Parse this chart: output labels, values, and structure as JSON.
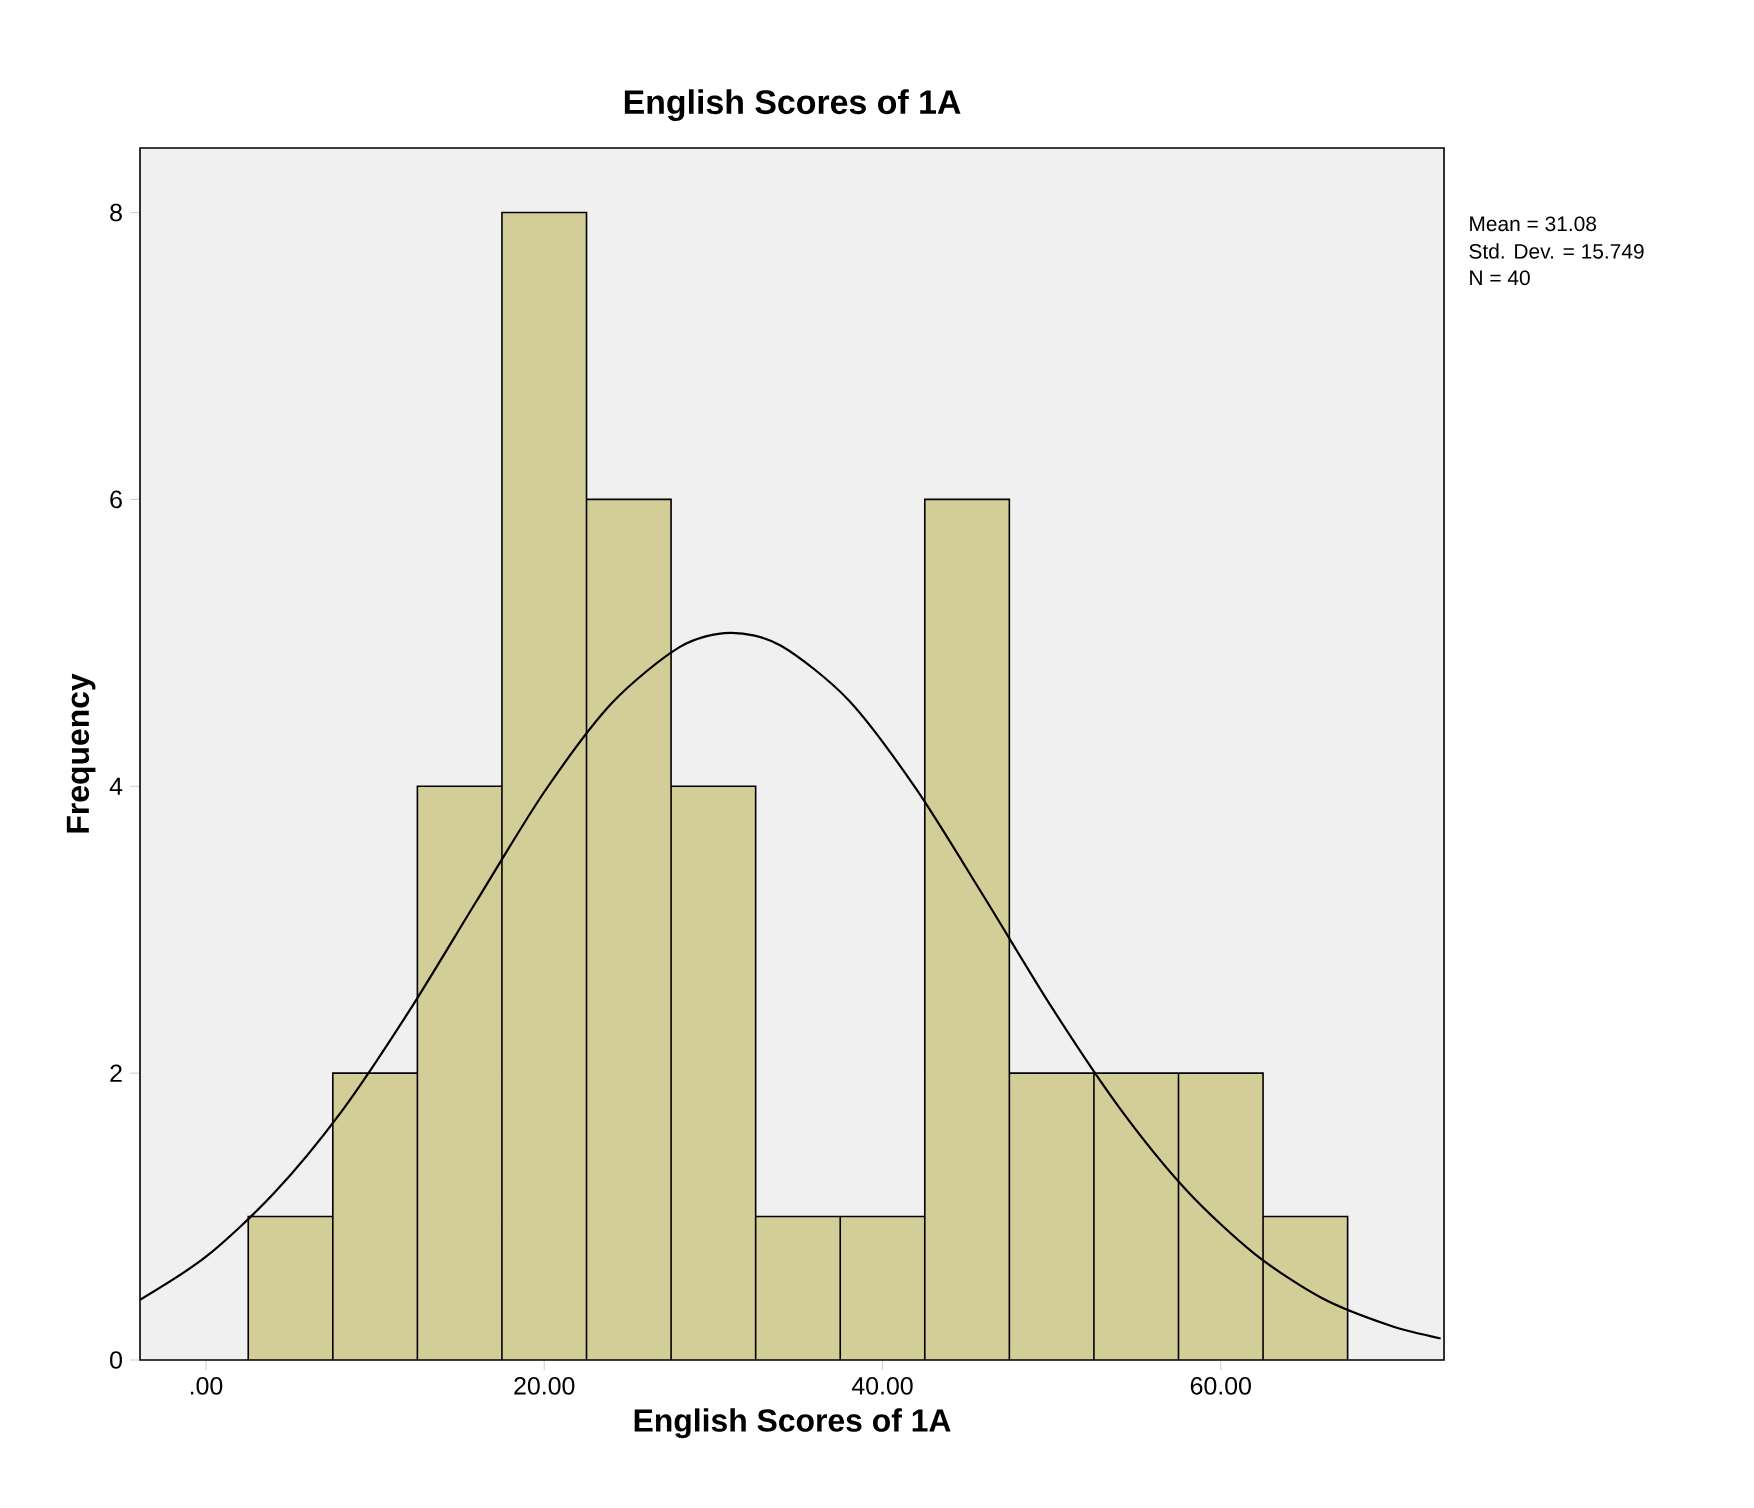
{
  "chart_data": {
    "type": "histogram",
    "title": "English Scores of 1A",
    "xlabel": "English Scores of 1A",
    "ylabel": "Frequency",
    "bins": [
      2.5,
      7.5,
      12.5,
      17.5,
      22.5,
      27.5,
      32.5,
      37.5,
      42.5,
      47.5,
      52.5,
      57.5,
      62.5,
      67.5
    ],
    "values": [
      1,
      2,
      4,
      8,
      6,
      4,
      1,
      1,
      6,
      2,
      2,
      2,
      1
    ],
    "color": "#d3ce97",
    "series": [
      {
        "type": "line",
        "color": "#000000",
        "x": [
          -3.9,
          0,
          4,
          8,
          12,
          16,
          20,
          24,
          28,
          31,
          34,
          38,
          42,
          46,
          50,
          54,
          58,
          62,
          66,
          70,
          73
        ],
        "values": [
          0.42,
          0.72,
          1.16,
          1.73,
          2.43,
          3.2,
          3.96,
          4.58,
          4.97,
          5.07,
          4.98,
          4.6,
          3.98,
          3.23,
          2.46,
          1.76,
          1.18,
          0.74,
          0.43,
          0.24,
          0.15
        ]
      }
    ],
    "xlim": [
      -3.9,
      73.2
    ],
    "ylim": [
      0,
      8.45
    ],
    "xticks": [
      {
        "value": 0,
        "label": ".00"
      },
      {
        "value": 20,
        "label": "20.00"
      },
      {
        "value": 40,
        "label": "40.00"
      },
      {
        "value": 60,
        "label": "60.00"
      }
    ],
    "yticks": [
      0,
      2,
      4,
      6,
      8
    ],
    "grid": false,
    "annotations": [
      "Mean = 31.08",
      "Std. Dev. = 15.749",
      "N = 40"
    ]
  }
}
